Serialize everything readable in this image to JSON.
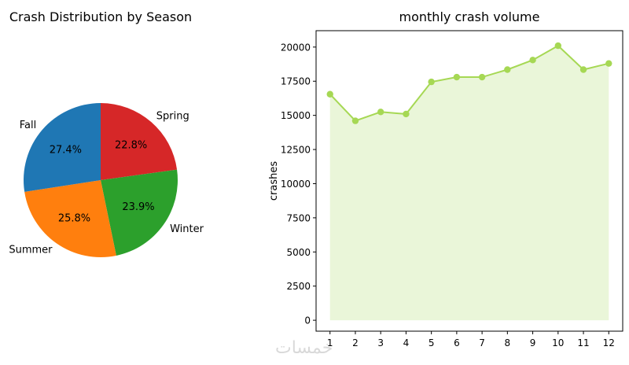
{
  "watermark": "خمسات",
  "chart_data": [
    {
      "type": "pie",
      "title": "Crash Distribution by Season",
      "labels": [
        "Spring",
        "Winter",
        "Summer",
        "Fall"
      ],
      "values": [
        22.8,
        23.9,
        25.8,
        27.4
      ],
      "percent_labels": [
        "22.8%",
        "23.9%",
        "25.8%",
        "27.4%"
      ],
      "colors": [
        "#d62728",
        "#2ca02c",
        "#ff7f0e",
        "#1f77b4"
      ],
      "start_angle_deg": 90,
      "direction": "clockwise"
    },
    {
      "type": "area",
      "title": "monthly crash volume",
      "xlabel": "",
      "ylabel": "crashes",
      "x": [
        1,
        2,
        3,
        4,
        5,
        6,
        7,
        8,
        9,
        10,
        11,
        12
      ],
      "values": [
        16550,
        14600,
        15250,
        15100,
        17450,
        17800,
        17800,
        18350,
        19050,
        20100,
        18350,
        18800
      ],
      "ylim": [
        -800,
        21200
      ],
      "yticks": [
        0,
        2500,
        5000,
        7500,
        10000,
        12500,
        15000,
        17500,
        20000
      ],
      "ytick_labels": [
        "0",
        "2500",
        "5000",
        "7500",
        "10000",
        "12500",
        "15000",
        "17500",
        "20000"
      ],
      "xtick_labels": [
        "1",
        "2",
        "3",
        "4",
        "5",
        "6",
        "7",
        "8",
        "9",
        "10",
        "11",
        "12"
      ],
      "line_color": "#a6d854",
      "fill_color": "#eaf6d9",
      "grid": false
    }
  ]
}
